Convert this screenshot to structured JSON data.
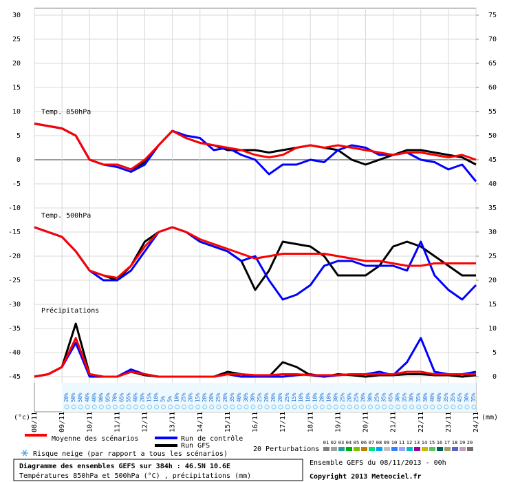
{
  "chart_data": {
    "type": "line",
    "title": "Diagramme des ensembles GEFS sur 384h : 46.5N 10.6E",
    "subtitle": "Températures 850hPa et 500hPa (°C) , précipitations (mm)",
    "run_label": "Ensemble GEFS du 08/11/2013 - 00h",
    "copyright": "Copyright 2013 Meteociel.fr",
    "y_unit": "(°c)",
    "y2_unit": "(mm)",
    "x": [
      0,
      12,
      24,
      36,
      48,
      60,
      72,
      84,
      96,
      108,
      120,
      132,
      144,
      156,
      168,
      180,
      192,
      204,
      216,
      228,
      240,
      252,
      264,
      276,
      288,
      300,
      312,
      324,
      336,
      348,
      360,
      372,
      384
    ],
    "xlim": [
      0,
      384
    ],
    "xticks": [
      {
        "value": 0,
        "label": "08/11"
      },
      {
        "value": 24,
        "label": "09/11"
      },
      {
        "value": 48,
        "label": "10/11"
      },
      {
        "value": 72,
        "label": "11/11"
      },
      {
        "value": 96,
        "label": "12/11"
      },
      {
        "value": 120,
        "label": "13/11"
      },
      {
        "value": 144,
        "label": "14/11"
      },
      {
        "value": 168,
        "label": "15/11"
      },
      {
        "value": 192,
        "label": "16/11"
      },
      {
        "value": 216,
        "label": "17/11"
      },
      {
        "value": 240,
        "label": "18/11"
      },
      {
        "value": 264,
        "label": "19/11"
      },
      {
        "value": 288,
        "label": "20/11"
      },
      {
        "value": 312,
        "label": "21/11"
      },
      {
        "value": 336,
        "label": "22/11"
      },
      {
        "value": 360,
        "label": "23/11"
      },
      {
        "value": 384,
        "label": "24/11"
      }
    ],
    "ylim": [
      -45,
      30
    ],
    "yticks": [
      -45,
      -40,
      -35,
      -30,
      -25,
      -20,
      -15,
      -10,
      -5,
      0,
      5,
      10,
      15,
      20,
      25,
      30
    ],
    "y2lim": [
      0,
      75
    ],
    "y2ticks": [
      0,
      5,
      10,
      15,
      20,
      25,
      30,
      35,
      40,
      45,
      50,
      55,
      60,
      65,
      70,
      75
    ],
    "grid": true,
    "legend": [
      {
        "name": "Moyenne des scénarios",
        "color": "#ff0000"
      },
      {
        "name": "Run de contrôle",
        "color": "#0000ff"
      },
      {
        "name": "Run GFS",
        "color": "#000000"
      }
    ],
    "panels": [
      {
        "label": "Temp. 850hPa",
        "axis": "y",
        "series": [
          [
            7.5,
            7,
            6.5,
            5,
            0,
            -1,
            -1,
            -2,
            0,
            3,
            6,
            4.5,
            3.5,
            3,
            2.5,
            2,
            1,
            0.5,
            1,
            2.5,
            3,
            2.5,
            3,
            2.5,
            2,
            1.5,
            1,
            1.5,
            1.5,
            1,
            0.5,
            1,
            0
          ],
          [
            7.5,
            7,
            6.5,
            5,
            0,
            -1,
            -1.5,
            -2.5,
            -1,
            3,
            6,
            5,
            4.5,
            2,
            2.5,
            1,
            0,
            -3,
            -1,
            -1,
            0,
            -0.5,
            2,
            3,
            2.5,
            1,
            1,
            1.5,
            0,
            -0.5,
            -2,
            -1,
            -4.5
          ],
          [
            7.5,
            7,
            6.5,
            5,
            0,
            -1,
            -1,
            -2,
            -0.5,
            3,
            6,
            4.5,
            3.5,
            3,
            2,
            2,
            2,
            1.5,
            2,
            2.5,
            3,
            2.5,
            2,
            0,
            -1,
            0,
            1,
            2,
            2,
            1.5,
            1,
            0.5,
            -1
          ]
        ]
      },
      {
        "label": "Temp. 500hPa",
        "axis": "y",
        "series": [
          [
            -14,
            -15,
            -16,
            -19,
            -23,
            -24,
            -24.5,
            -22,
            -18,
            -15,
            -14,
            -15,
            -16.5,
            -17.5,
            -18.5,
            -19.5,
            -20.5,
            -20,
            -19.5,
            -19.5,
            -19.5,
            -19.5,
            -20,
            -20.5,
            -21,
            -21,
            -21.5,
            -22,
            -22,
            -21.5,
            -21.5,
            -21.5,
            -21.5
          ],
          [
            -14,
            -15,
            -16,
            -19,
            -23,
            -25,
            -25,
            -23,
            -19,
            -15,
            -14,
            -15,
            -17,
            -18,
            -19,
            -21,
            -20,
            -25,
            -29,
            -28,
            -26,
            -22,
            -21,
            -21,
            -22,
            -22,
            -22,
            -23,
            -17,
            -24,
            -27,
            -29,
            -26
          ],
          [
            -14,
            -15,
            -16,
            -19,
            -23,
            -24,
            -25,
            -22,
            -17,
            -15,
            -14,
            -15,
            -17,
            -18,
            -19,
            -21,
            -27,
            -23,
            -17,
            -17.5,
            -18,
            -20,
            -24,
            -24,
            -24,
            -22,
            -18,
            -17,
            -18,
            -20,
            -22,
            -24,
            -24
          ]
        ]
      },
      {
        "label": "Précipitations",
        "axis": "y2",
        "series": [
          [
            0,
            0.5,
            2,
            8,
            0.5,
            0,
            0,
            1,
            0.5,
            0,
            0,
            0,
            0,
            0,
            0.5,
            0.5,
            0.3,
            0.3,
            0.5,
            0.5,
            0.3,
            0.3,
            0.3,
            0.5,
            0.5,
            0.5,
            0.5,
            1,
            1,
            0.5,
            0.5,
            0.5,
            0.5
          ],
          [
            0,
            0.5,
            2,
            7,
            0,
            0,
            0,
            1.5,
            0.5,
            0,
            0,
            0,
            0,
            0,
            0.5,
            0,
            0,
            0,
            0,
            0.3,
            0.5,
            0,
            0.3,
            0.5,
            0.5,
            1,
            0.3,
            3,
            8,
            1,
            0.5,
            0.5,
            1
          ],
          [
            0,
            0.5,
            2,
            11,
            0.5,
            0,
            0,
            1,
            0.3,
            0,
            0,
            0,
            0,
            0,
            1,
            0.5,
            0,
            0,
            3,
            2,
            0.3,
            0,
            0.5,
            0.3,
            0,
            0.3,
            0.3,
            0.5,
            0.5,
            0.3,
            0.3,
            0,
            0.3
          ]
        ]
      }
    ],
    "snow_legend": "Risque neige (par rapport a tous les scénarios)",
    "snow_risk": [
      "20%",
      "50%",
      "50%",
      "40%",
      "40%",
      "90%",
      "95%",
      "70%",
      "65%",
      "55%",
      "40%",
      "20%",
      "15%",
      "10%",
      "5%",
      "5%",
      "10%",
      "25%",
      "20%",
      "15%",
      "20%",
      "20%",
      "25%",
      "20%",
      "35%",
      "40%",
      "30%",
      "30%",
      "25%",
      "20%",
      "20%",
      "20%",
      "25%",
      "15%",
      "10%",
      "10%",
      "10%",
      "20%",
      "10%",
      "30%",
      "25%",
      "20%",
      "25%",
      "20%",
      "30%",
      "25%",
      "35%",
      "45%",
      "30%",
      "35%",
      "30%",
      "35%",
      "30%",
      "40%",
      "40%",
      "35%",
      "35%",
      "45%",
      "30%",
      "35%"
    ],
    "perturbations_label": "20 Perturbations",
    "perturbations": [
      {
        "name": "01",
        "color": "#808080"
      },
      {
        "name": "02",
        "color": "#a0a0a0"
      },
      {
        "name": "03",
        "color": "#20a0a0"
      },
      {
        "name": "04",
        "color": "#00b000"
      },
      {
        "name": "05",
        "color": "#80c000"
      },
      {
        "name": "06",
        "color": "#c08000"
      },
      {
        "name": "07",
        "color": "#00e080"
      },
      {
        "name": "08",
        "color": "#00a0ff"
      },
      {
        "name": "09",
        "color": "#c0c0c0"
      },
      {
        "name": "10",
        "color": "#3080ff"
      },
      {
        "name": "11",
        "color": "#a0a0ff"
      },
      {
        "name": "12",
        "color": "#00c0c0"
      },
      {
        "name": "13",
        "color": "#a000a0"
      },
      {
        "name": "14",
        "color": "#c0c000"
      },
      {
        "name": "15",
        "color": "#60c060"
      },
      {
        "name": "16",
        "color": "#006060"
      },
      {
        "name": "17",
        "color": "#a0a060"
      },
      {
        "name": "18",
        "color": "#6060c0"
      },
      {
        "name": "19",
        "color": "#c0a0c0"
      },
      {
        "name": "20",
        "color": "#707070"
      }
    ]
  }
}
